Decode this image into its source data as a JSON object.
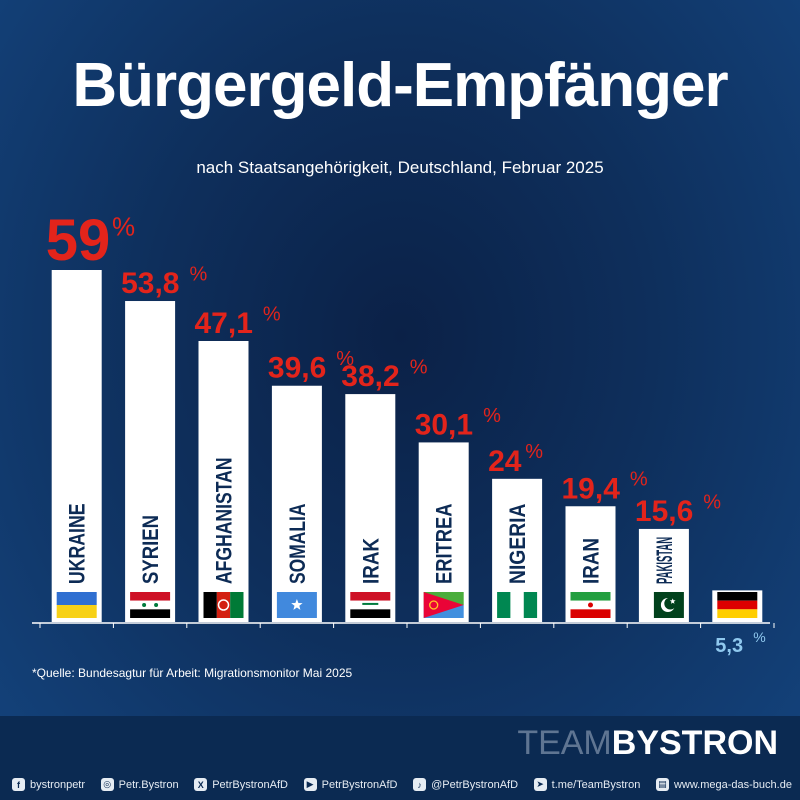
{
  "title": "Bürgergeld-Empfänger",
  "subtitle": "nach Staatsangehörigkeit, Deutschland, Februar 2025",
  "source": "*Quelle: Bundesagtur für Arbeit: Migrationsmonitor Mai 2025",
  "brand": {
    "light": "TEAM",
    "bold": "BYSTRON"
  },
  "colors": {
    "value_red": "#e3241b",
    "value_lightblue": "#8fc8ee",
    "bar": "#ffffff",
    "label_dark": "#0d2b55"
  },
  "chart_data": {
    "type": "bar",
    "categories": [
      "UKRAINE",
      "SYRIEN",
      "AFGHANISTAN",
      "SOMALIA",
      "IRAK",
      "ERITREA",
      "NIGERIA",
      "IRAN",
      "PAKISTAN",
      ""
    ],
    "values": [
      59,
      53.8,
      47.1,
      39.6,
      38.2,
      30.1,
      24,
      19.4,
      15.6,
      5.3
    ],
    "value_labels": [
      "59",
      "53,8",
      "47,1",
      "39,6",
      "38,2",
      "30,1",
      "24",
      "19,4",
      "15,6",
      "5,3"
    ],
    "unit": "%",
    "flags": [
      "ukraine-flag",
      "syria-flag",
      "afghanistan-flag",
      "somalia-flag",
      "iraq-flag",
      "eritrea-flag",
      "nigeria-flag",
      "iran-flag",
      "pakistan-flag",
      "germany-flag"
    ],
    "ylim": [
      0,
      59
    ],
    "grid": false
  },
  "social": [
    {
      "icon": "facebook-icon",
      "glyph": "f",
      "label": "bystronpetr"
    },
    {
      "icon": "instagram-icon",
      "glyph": "◎",
      "label": "Petr.Bystron"
    },
    {
      "icon": "x-icon",
      "glyph": "X",
      "label": "PetrBystronAfD"
    },
    {
      "icon": "youtube-icon",
      "glyph": "▶",
      "label": "PetrBystronAfD"
    },
    {
      "icon": "tiktok-icon",
      "glyph": "♪",
      "label": "@PetrBystronAfD"
    },
    {
      "icon": "telegram-icon",
      "glyph": "➤",
      "label": "t.me/TeamBystron"
    },
    {
      "icon": "book-icon",
      "glyph": "▤",
      "label": "www.mega-das-buch.de"
    }
  ]
}
